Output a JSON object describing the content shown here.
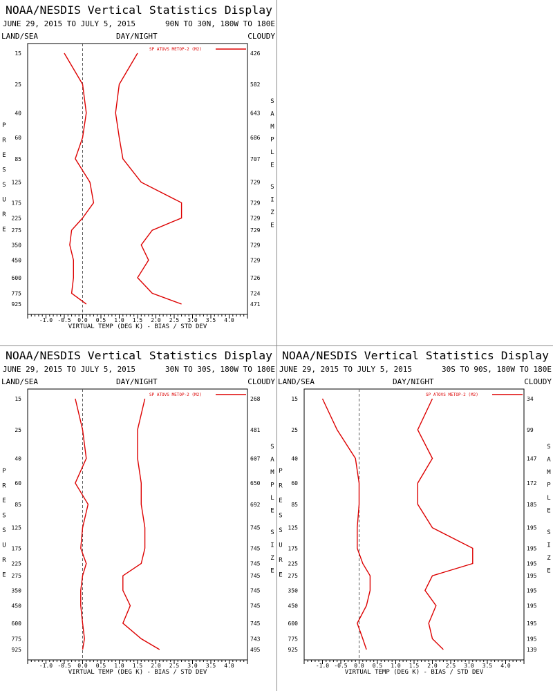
{
  "header": {
    "title": "NOAA/NESDIS Vertical Statistics Display",
    "date_range": "JUNE 29, 2015 TO JULY 5, 2015",
    "left_label": "LAND/SEA",
    "center_label": "DAY/NIGHT",
    "right_label": "CLOUDY"
  },
  "axes": {
    "xlabel": "VIRTUAL TEMP (DEG K) - BIAS / STD DEV",
    "left_vertical_label": "PRESSURE",
    "right_vertical_label_1": "SAMPLE",
    "right_vertical_label_2": "SIZE",
    "xticks": [
      "-1.0",
      "-0.5",
      "0.0",
      "0.5",
      "1.0",
      "1.5",
      "2.0",
      "2.5",
      "3.0",
      "3.5",
      "4.0"
    ],
    "pressure_levels": [
      "15",
      "25",
      "40",
      "60",
      "85",
      "125",
      "175",
      "225",
      "275",
      "350",
      "450",
      "600",
      "775",
      "925"
    ]
  },
  "colors": {
    "line": "#dd0000",
    "axis": "#000000",
    "zero_line": "#555555"
  },
  "chart_data": [
    {
      "type": "line",
      "region": "90N TO 30N, 180W TO 180E",
      "legend": "SP ATOVS METOP-2 (M2)",
      "y": [
        15,
        25,
        40,
        60,
        85,
        125,
        175,
        225,
        275,
        350,
        450,
        600,
        775,
        925
      ],
      "xlim": [
        -1.5,
        4.5
      ],
      "series": [
        {
          "name": "bias",
          "values": [
            -0.5,
            0.0,
            0.1,
            0.0,
            -0.2,
            0.2,
            0.3,
            0.0,
            -0.3,
            -0.35,
            -0.25,
            -0.25,
            -0.3,
            0.1
          ]
        },
        {
          "name": "std dev",
          "values": [
            1.5,
            1.0,
            0.9,
            1.0,
            1.1,
            1.6,
            2.7,
            2.7,
            1.9,
            1.6,
            1.8,
            1.5,
            1.9,
            2.7
          ]
        }
      ],
      "sample_size": [
        "426",
        "582",
        "643",
        "686",
        "707",
        "729",
        "729",
        "729",
        "729",
        "729",
        "729",
        "726",
        "724",
        "471"
      ]
    },
    {
      "type": "line",
      "region": "30N TO 30S, 180W TO 180E",
      "legend": "SP ATOVS METOP-2 (M2)",
      "y": [
        15,
        25,
        40,
        60,
        85,
        125,
        175,
        225,
        275,
        350,
        450,
        600,
        775,
        925
      ],
      "xlim": [
        -1.5,
        4.5
      ],
      "series": [
        {
          "name": "bias",
          "values": [
            -0.2,
            0.0,
            0.1,
            -0.2,
            0.15,
            0.0,
            -0.05,
            0.1,
            0.0,
            -0.05,
            -0.05,
            0.0,
            0.05,
            0.0
          ]
        },
        {
          "name": "std dev",
          "values": [
            1.7,
            1.5,
            1.5,
            1.6,
            1.6,
            1.7,
            1.7,
            1.6,
            1.1,
            1.1,
            1.3,
            1.1,
            1.6,
            2.1
          ]
        }
      ],
      "sample_size": [
        "268",
        "481",
        "607",
        "650",
        "692",
        "745",
        "745",
        "745",
        "745",
        "745",
        "745",
        "745",
        "743",
        "495"
      ]
    },
    {
      "type": "line",
      "region": "30S TO 90S, 180W TO 180E",
      "legend": "SP ATOVS METOP-2 (M2)",
      "y": [
        15,
        25,
        40,
        60,
        85,
        125,
        175,
        225,
        275,
        350,
        450,
        600,
        775,
        925
      ],
      "xlim": [
        -1.5,
        4.5
      ],
      "series": [
        {
          "name": "bias",
          "values": [
            -1.0,
            -0.6,
            -0.1,
            0.0,
            0.0,
            -0.05,
            -0.05,
            0.1,
            0.3,
            0.3,
            0.2,
            -0.05,
            0.1,
            0.2
          ]
        },
        {
          "name": "std dev",
          "values": [
            2.0,
            1.6,
            2.0,
            1.6,
            1.6,
            2.0,
            3.1,
            3.1,
            2.0,
            1.8,
            2.1,
            1.9,
            2.0,
            2.3
          ]
        }
      ],
      "sample_size": [
        "34",
        "99",
        "147",
        "172",
        "185",
        "195",
        "195",
        "195",
        "195",
        "195",
        "195",
        "195",
        "195",
        "139"
      ]
    }
  ]
}
